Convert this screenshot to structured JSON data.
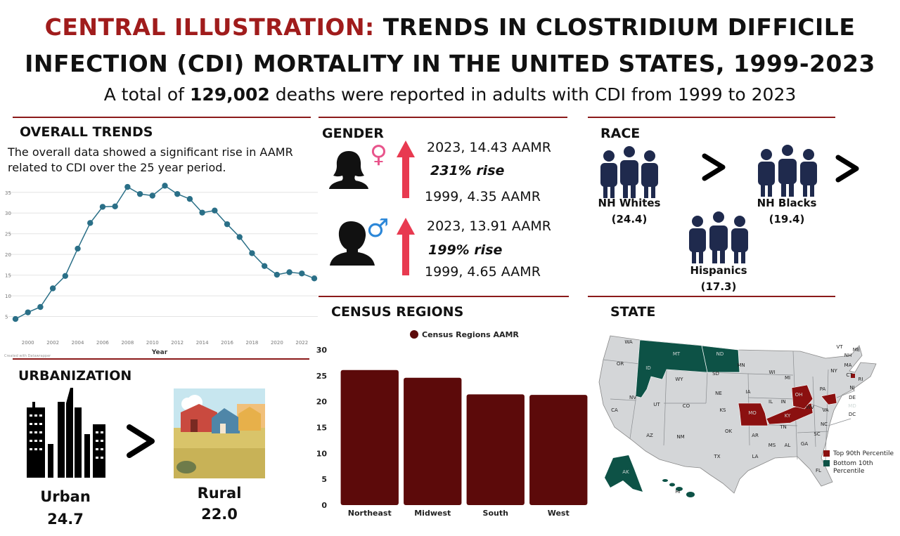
{
  "header": {
    "title_red": "CENTRAL ILLUSTRATION:",
    "title_rest1": "TRENDS IN CLOSTRIDIUM DIFFICILE",
    "title_line2": "INFECTION (CDI) MORTALITY IN THE UNITED STATES, 1999-2023",
    "subtitle_pre": "A total of",
    "subtitle_bold": "129,002",
    "subtitle_post": "deaths were reported in adults with CDI from 1999 to 2023"
  },
  "overall": {
    "heading": "OVERALL TRENDS",
    "description": "The overall data showed a significant rise in AAMR related to CDI over the 25 year period."
  },
  "gender": {
    "heading": "GENDER",
    "female": {
      "symbol": "♀",
      "top": "2023, 14.43 AAMR",
      "rise": "231% rise",
      "bottom": "1999, 4.35 AAMR"
    },
    "male": {
      "symbol": "♂",
      "top": "2023, 13.91 AAMR",
      "rise": "199% rise",
      "bottom": "1999, 4.65 AAMR"
    }
  },
  "race": {
    "heading": "RACE",
    "groups": [
      {
        "label": "NH Whites",
        "value": "(24.4)"
      },
      {
        "label": "NH Blacks",
        "value": "(19.4)"
      },
      {
        "label": "Hispanics",
        "value": "(17.3)"
      }
    ]
  },
  "urbanization": {
    "heading": "URBANIZATION",
    "urban_label": "Urban",
    "urban_value": "24.7",
    "rural_label": "Rural",
    "rural_value": "22.0"
  },
  "census": {
    "heading": "CENSUS REGIONS"
  },
  "state": {
    "heading": "STATE",
    "legend_top": "Top 90th Percentile",
    "legend_bottom_1": "Bottom 10th",
    "legend_bottom_2": "Percentile",
    "top_color": "#8b1010",
    "bottom_color": "#0d5246",
    "base_color": "#d4d6d8",
    "labels": [
      "WA",
      "OR",
      "CA",
      "NV",
      "ID",
      "MT",
      "WY",
      "UT",
      "AZ",
      "CO",
      "NM",
      "ND",
      "SD",
      "NE",
      "KS",
      "OK",
      "TX",
      "MN",
      "IA",
      "MO",
      "AR",
      "LA",
      "WI",
      "IL",
      "MI",
      "IN",
      "OH",
      "KY",
      "TN",
      "MS",
      "AL",
      "GA",
      "FL",
      "SC",
      "NC",
      "VA",
      "WV",
      "PA",
      "NY",
      "ME",
      "VT",
      "NH",
      "MA",
      "RI",
      "CT",
      "NJ",
      "DE",
      "MD",
      "DC",
      "AK",
      "HI"
    ]
  },
  "chart_data": [
    {
      "type": "line",
      "title": "",
      "xlabel": "Year",
      "ylabel": "",
      "x": [
        1999,
        2000,
        2001,
        2002,
        2003,
        2004,
        2005,
        2006,
        2007,
        2008,
        2009,
        2010,
        2011,
        2012,
        2013,
        2014,
        2015,
        2016,
        2017,
        2018,
        2019,
        2020,
        2021,
        2022,
        2023
      ],
      "y": [
        4.4,
        6.0,
        7.3,
        11.8,
        14.8,
        21.4,
        27.6,
        31.5,
        31.6,
        36.3,
        34.6,
        34.2,
        36.6,
        34.6,
        33.4,
        30.1,
        30.6,
        27.3,
        24.2,
        20.3,
        17.2,
        15.1,
        15.7,
        15.4,
        14.2
      ],
      "xticks": [
        2000,
        2002,
        2004,
        2006,
        2008,
        2010,
        2012,
        2014,
        2016,
        2018,
        2020,
        2022
      ],
      "yticks": [
        5,
        10,
        15,
        20,
        25,
        30,
        35
      ],
      "ylim": [
        0,
        37
      ],
      "grid": true,
      "line_color": "#2a6f87",
      "watermark": "Created with Datawrapper"
    },
    {
      "type": "bar",
      "legend": "Census Regions AAMR",
      "legend_position": "top",
      "categories": [
        "Northeast",
        "Midwest",
        "South",
        "West"
      ],
      "values": [
        26.1,
        24.6,
        21.4,
        21.3
      ],
      "yticks": [
        0,
        5,
        10,
        15,
        20,
        25,
        30
      ],
      "ylim": [
        0,
        30
      ],
      "bar_color": "#5c0a0a"
    }
  ]
}
